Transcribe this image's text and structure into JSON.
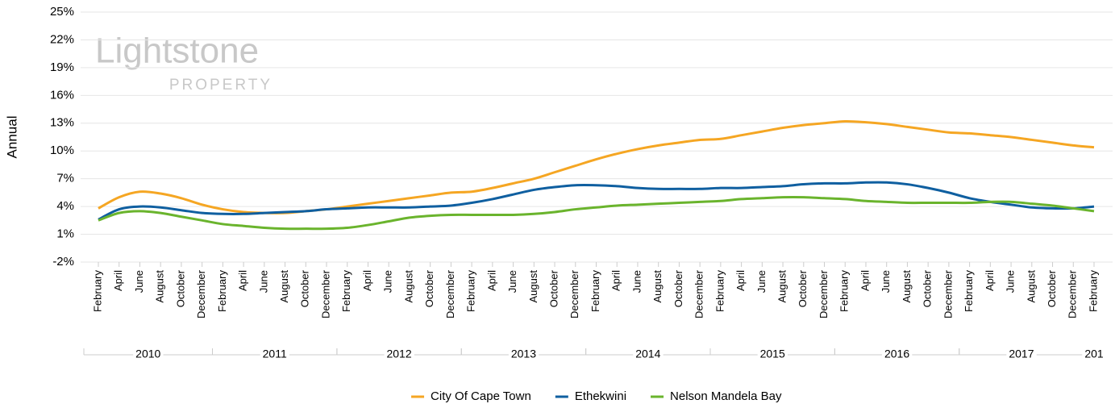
{
  "chart_data": {
    "type": "line",
    "y_label": "Annual",
    "watermark": {
      "brand": "Lightstone",
      "sub": "PROPERTY"
    },
    "groups": [
      {
        "label": "2010",
        "categories": [
          "February",
          "April",
          "June",
          "August",
          "October",
          "December"
        ]
      },
      {
        "label": "2011",
        "categories": [
          "February",
          "April",
          "June",
          "August",
          "October",
          "December"
        ]
      },
      {
        "label": "2012",
        "categories": [
          "February",
          "April",
          "June",
          "August",
          "October",
          "December"
        ]
      },
      {
        "label": "2013",
        "categories": [
          "February",
          "April",
          "June",
          "August",
          "October",
          "December"
        ]
      },
      {
        "label": "2014",
        "categories": [
          "February",
          "April",
          "June",
          "August",
          "October",
          "December"
        ]
      },
      {
        "label": "2015",
        "categories": [
          "February",
          "April",
          "June",
          "August",
          "October",
          "December"
        ]
      },
      {
        "label": "2016",
        "categories": [
          "February",
          "April",
          "June",
          "August",
          "October",
          "December"
        ]
      },
      {
        "label": "2017",
        "categories": [
          "February",
          "April",
          "June",
          "August",
          "October",
          "December"
        ]
      },
      {
        "label": "201",
        "categories": [
          "February"
        ]
      }
    ],
    "series": [
      {
        "name": "City Of Cape Town",
        "color": "#f5a623",
        "values": [
          3.8,
          5.0,
          5.6,
          5.4,
          4.9,
          4.2,
          3.7,
          3.4,
          3.3,
          3.3,
          3.5,
          3.7,
          4.0,
          4.3,
          4.6,
          4.9,
          5.2,
          5.5,
          5.6,
          6.0,
          6.5,
          7.0,
          7.7,
          8.4,
          9.1,
          9.7,
          10.2,
          10.6,
          10.9,
          11.2,
          11.3,
          11.7,
          12.1,
          12.5,
          12.8,
          13.0,
          13.2,
          13.1,
          12.9,
          12.6,
          12.3,
          12.0,
          11.9,
          11.7,
          11.5,
          11.2,
          10.9,
          10.6,
          10.4
        ]
      },
      {
        "name": "Ethekwini",
        "color": "#0f5fa0",
        "values": [
          2.6,
          3.7,
          4.0,
          3.9,
          3.6,
          3.3,
          3.2,
          3.2,
          3.3,
          3.4,
          3.5,
          3.7,
          3.8,
          3.9,
          3.9,
          3.9,
          4.0,
          4.1,
          4.4,
          4.8,
          5.3,
          5.8,
          6.1,
          6.3,
          6.3,
          6.2,
          6.0,
          5.9,
          5.9,
          5.9,
          6.0,
          6.0,
          6.1,
          6.2,
          6.4,
          6.5,
          6.5,
          6.6,
          6.6,
          6.4,
          6.0,
          5.5,
          4.9,
          4.5,
          4.2,
          3.9,
          3.8,
          3.8,
          4.0
        ]
      },
      {
        "name": "Nelson Mandela Bay",
        "color": "#6ab42d",
        "values": [
          2.5,
          3.3,
          3.5,
          3.3,
          2.9,
          2.5,
          2.1,
          1.9,
          1.7,
          1.6,
          1.6,
          1.6,
          1.7,
          2.0,
          2.4,
          2.8,
          3.0,
          3.1,
          3.1,
          3.1,
          3.1,
          3.2,
          3.4,
          3.7,
          3.9,
          4.1,
          4.2,
          4.3,
          4.4,
          4.5,
          4.6,
          4.8,
          4.9,
          5.0,
          5.0,
          4.9,
          4.8,
          4.6,
          4.5,
          4.4,
          4.4,
          4.4,
          4.4,
          4.5,
          4.5,
          4.3,
          4.1,
          3.8,
          3.5
        ]
      }
    ],
    "ylim": [
      -2,
      25
    ],
    "yticks": [
      {
        "value": -2,
        "label": "-2%"
      },
      {
        "value": 1,
        "label": "1%"
      },
      {
        "value": 4,
        "label": "4%"
      },
      {
        "value": 7,
        "label": "7%"
      },
      {
        "value": 10,
        "label": "10%"
      },
      {
        "value": 13,
        "label": "13%"
      },
      {
        "value": 16,
        "label": "16%"
      },
      {
        "value": 19,
        "label": "19%"
      },
      {
        "value": 22,
        "label": "22%"
      },
      {
        "value": 25,
        "label": "25%"
      }
    ],
    "grid": true,
    "legend": "bottom"
  }
}
